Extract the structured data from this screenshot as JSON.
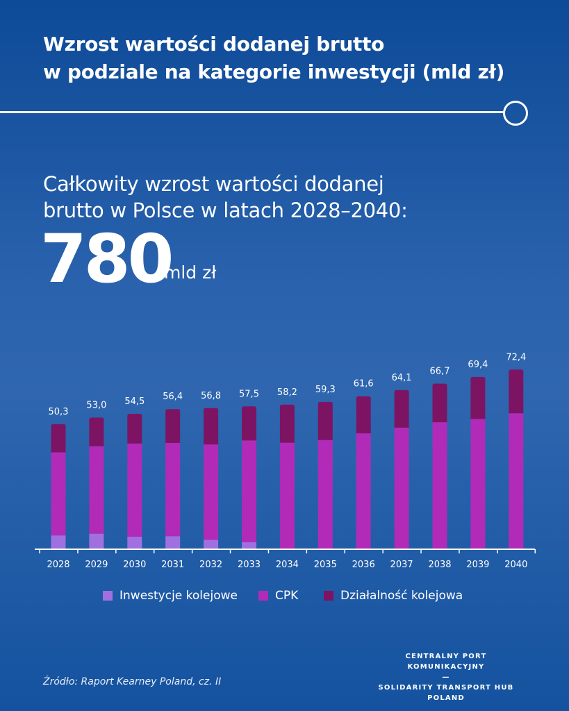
{
  "header": {
    "title_line1": "Wzrost wartości dodanej brutto",
    "title_line2": "w podziale na kategorie inwestycji (mld zł)"
  },
  "summary": {
    "text_line1": "Całkowity wzrost wartości dodanej",
    "text_line2": "brutto w Polsce w latach 2028–2040:",
    "total_value": "780",
    "total_unit": "mld zł"
  },
  "chart_data": {
    "type": "bar",
    "stacked": true,
    "categories": [
      "2028",
      "2029",
      "2030",
      "2031",
      "2032",
      "2033",
      "2034",
      "2035",
      "2036",
      "2037",
      "2038",
      "2039",
      "2040"
    ],
    "totals_labels": [
      "50,3",
      "53,0",
      "54,5",
      "56,4",
      "56,8",
      "57,5",
      "58,2",
      "59,3",
      "61,6",
      "64,1",
      "66,7",
      "69,4",
      "72,4"
    ],
    "series": [
      {
        "name": "Inwestycje kolejowe",
        "color": "#a070e0",
        "values": [
          5.3,
          6.0,
          4.8,
          5.0,
          3.5,
          2.6,
          0,
          0,
          0,
          0,
          0,
          0,
          0
        ]
      },
      {
        "name": "CPK",
        "color": "#b12bb8",
        "values": [
          33.6,
          35.4,
          37.7,
          37.7,
          38.6,
          41.1,
          42.8,
          43.9,
          46.6,
          48.9,
          51.1,
          52.4,
          54.7
        ]
      },
      {
        "name": "Działalność kolejowa",
        "color": "#7d1463",
        "values": [
          11.4,
          11.6,
          12.0,
          13.7,
          14.7,
          13.8,
          15.4,
          15.4,
          15.0,
          15.2,
          15.6,
          17.0,
          17.7
        ]
      }
    ],
    "ylim": [
      0,
      80
    ],
    "legend_position": "bottom-center"
  },
  "source": "Źródło: Raport Kearney Poland, cz. II",
  "brand": {
    "line1": "CENTRALNY PORT KOMUNIKACYJNY",
    "separator": "—",
    "line2": "SOLIDARITY TRANSPORT HUB",
    "line3": "POLAND"
  }
}
